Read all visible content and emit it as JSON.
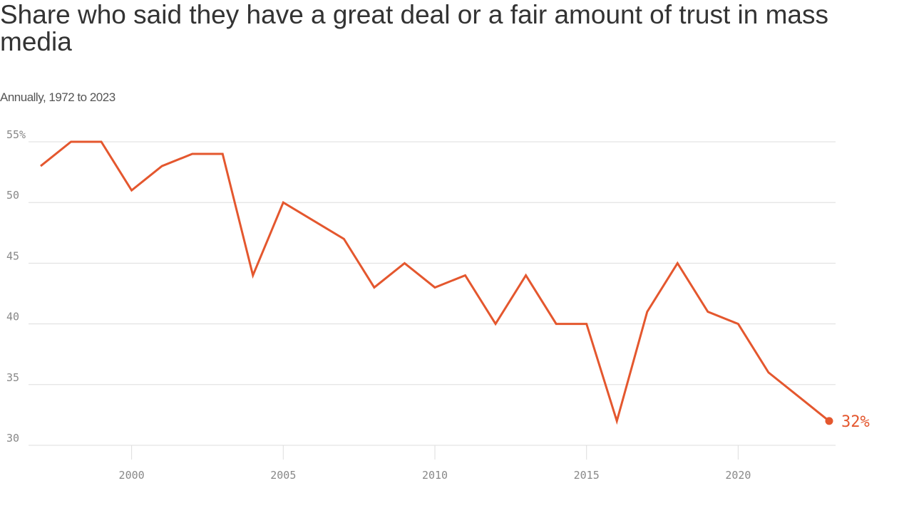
{
  "chart_data": {
    "type": "line",
    "title": "Share who said they have a great deal or a fair amount of trust in mass media",
    "subtitle": "Annually, 1972 to 2023",
    "xlabel": "",
    "ylabel": "",
    "xlim": [
      1997,
      2023
    ],
    "ylim": [
      30,
      55
    ],
    "grid": true,
    "x_ticks": [
      "2000",
      "2005",
      "2010",
      "2015",
      "2020"
    ],
    "y_ticks": [
      "30",
      "35",
      "40",
      "45",
      "50",
      "55%"
    ],
    "x": [
      1997,
      1998,
      1999,
      2000,
      2001,
      2002,
      2003,
      2004,
      2005,
      2007,
      2008,
      2009,
      2010,
      2011,
      2012,
      2013,
      2014,
      2015,
      2016,
      2017,
      2018,
      2019,
      2020,
      2021,
      2022,
      2023
    ],
    "values": [
      53,
      55,
      55,
      51,
      53,
      54,
      54,
      44,
      50,
      47,
      43,
      45,
      43,
      44,
      40,
      44,
      40,
      40,
      32,
      41,
      45,
      41,
      40,
      36,
      34,
      32
    ],
    "end_label": "32%",
    "colors": {
      "line": "#e4572e",
      "grid": "#dddddd",
      "text": "#333333"
    }
  }
}
